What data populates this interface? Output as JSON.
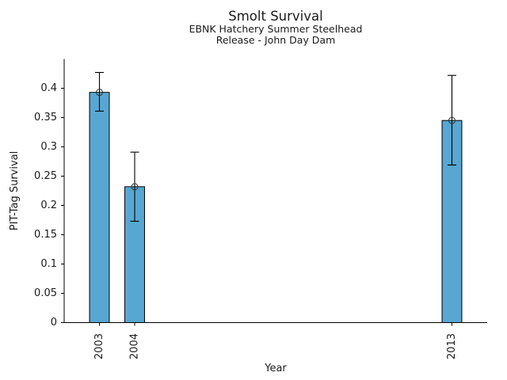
{
  "chart_data": {
    "type": "bar",
    "title": "Smolt Survival",
    "subtitle1": "EBNK Hatchery Summer Steelhead",
    "subtitle2": "Release - John Day Dam",
    "xlabel": "Year",
    "ylabel": "PIT-Tag Survival",
    "x": [
      2003,
      2004,
      2013
    ],
    "x_labels": [
      "2003",
      "2004",
      "2013"
    ],
    "values": [
      0.393,
      0.232,
      0.345
    ],
    "error_low": [
      0.361,
      0.173,
      0.269
    ],
    "error_high": [
      0.427,
      0.291,
      0.422
    ],
    "xlim": [
      2002,
      2014
    ],
    "ylim": [
      0,
      0.45
    ],
    "ytick_values": [
      0,
      0.05,
      0.1,
      0.15,
      0.2,
      0.25,
      0.3,
      0.35,
      0.4
    ],
    "ytick_labels": [
      "0",
      "0.05",
      "0.1",
      "0.15",
      "0.2",
      "0.25",
      "0.3",
      "0.35",
      "0.4"
    ],
    "bar_width_years": 0.56,
    "bar_color": "#58A7D2",
    "bar_edge_color": "#000000",
    "error_bar_color": "#000000",
    "marker": "open-circle",
    "marker_edge_color": "#333333",
    "grid": false,
    "legend": null,
    "x_tick_label_rotation_deg": 90
  }
}
